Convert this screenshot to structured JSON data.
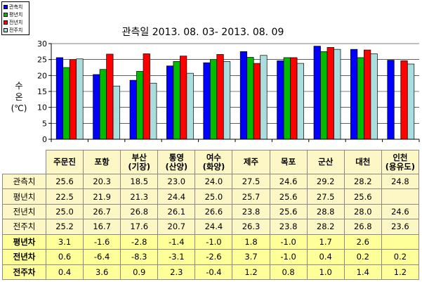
{
  "colors": {
    "observed": "#0000ff",
    "normal": "#00bb00",
    "last_year": "#ff0000",
    "last_week": "#aadddd"
  },
  "chart_data": {
    "type": "bar",
    "title": "관측일 2013. 08. 03-  2013. 08. 09",
    "ylabel_lines": [
      "수",
      "온",
      "(℃)"
    ],
    "ylim": [
      0,
      30
    ],
    "yticks": [
      0,
      5,
      10,
      15,
      20,
      25,
      30
    ],
    "grid": true,
    "legend_position": "top-left",
    "categories": [
      [
        "주문진"
      ],
      [
        "포항"
      ],
      [
        "부산",
        "(기장)"
      ],
      [
        "통영",
        "(산양)"
      ],
      [
        "여수",
        "(화양)"
      ],
      [
        "제주"
      ],
      [
        "목포"
      ],
      [
        "군산"
      ],
      [
        "대천"
      ],
      [
        "인천",
        "(용유도)"
      ]
    ],
    "series": [
      {
        "name": "관측치",
        "color": "#0000ff",
        "values": [
          25.6,
          20.3,
          18.5,
          23.0,
          24.0,
          27.5,
          24.6,
          29.2,
          28.2,
          24.8
        ]
      },
      {
        "name": "평년치",
        "color": "#00bb00",
        "values": [
          22.5,
          21.9,
          21.3,
          24.4,
          25.0,
          25.7,
          25.6,
          27.5,
          25.6,
          null
        ]
      },
      {
        "name": "전년치",
        "color": "#ff0000",
        "values": [
          25.0,
          26.7,
          26.8,
          26.1,
          26.6,
          23.8,
          25.6,
          28.8,
          28.0,
          24.6
        ]
      },
      {
        "name": "전주치",
        "color": "#aadddd",
        "values": [
          25.2,
          16.7,
          17.6,
          20.7,
          24.4,
          26.3,
          23.8,
          28.2,
          26.8,
          23.6
        ]
      }
    ]
  },
  "table": {
    "rows": [
      {
        "label": "관측치",
        "kind": "obs",
        "cells": [
          "25.6",
          "20.3",
          "18.5",
          "23.0",
          "24.0",
          "27.5",
          "24.6",
          "29.2",
          "28.2",
          "24.8"
        ]
      },
      {
        "label": "평년치",
        "kind": "obs",
        "cells": [
          "22.5",
          "21.9",
          "21.3",
          "24.4",
          "25.0",
          "25.7",
          "25.6",
          "27.5",
          "25.6",
          ""
        ]
      },
      {
        "label": "전년치",
        "kind": "obs",
        "cells": [
          "25.0",
          "26.7",
          "26.8",
          "26.1",
          "26.6",
          "23.8",
          "25.6",
          "28.8",
          "28.0",
          "24.6"
        ]
      },
      {
        "label": "전주치",
        "kind": "obs",
        "cells": [
          "25.2",
          "16.7",
          "17.6",
          "20.7",
          "24.4",
          "26.3",
          "23.8",
          "28.2",
          "26.8",
          "23.6"
        ]
      },
      {
        "label": "평년차",
        "kind": "diff",
        "cells": [
          "3.1",
          "-1.6",
          "-2.8",
          "-1.4",
          "-1.0",
          "1.8",
          "-1.0",
          "1.7",
          "2.6",
          ""
        ]
      },
      {
        "label": "전년차",
        "kind": "diff",
        "cells": [
          "0.6",
          "-6.4",
          "-8.3",
          "-3.1",
          "-2.6",
          "3.7",
          "-1.0",
          "0.4",
          "0.2",
          "0.2"
        ]
      },
      {
        "label": "전주차",
        "kind": "diff",
        "cells": [
          "0.4",
          "3.6",
          "0.9",
          "2.3",
          "-0.4",
          "1.2",
          "0.8",
          "1.0",
          "1.4",
          "1.2"
        ]
      }
    ]
  }
}
